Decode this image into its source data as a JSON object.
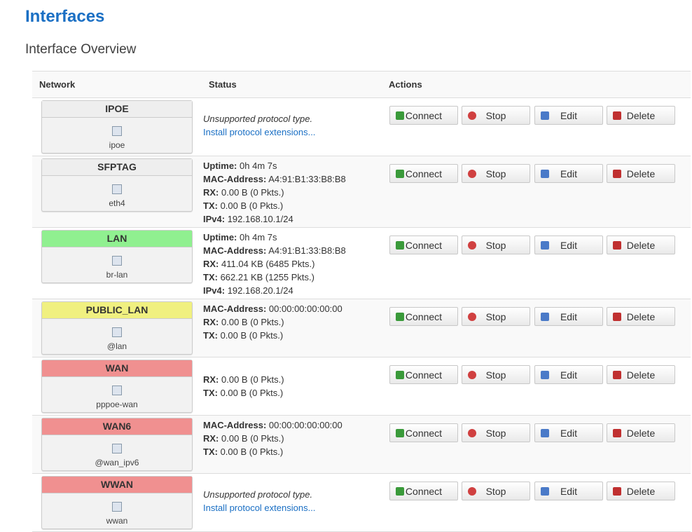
{
  "header": {
    "title": "Interfaces",
    "subtitle": "Interface Overview"
  },
  "table": {
    "columns": [
      "Network",
      "Status",
      "Actions"
    ],
    "actions": [
      "Connect",
      "Stop",
      "Edit",
      "Delete"
    ],
    "rows": [
      {
        "name": "IPOE",
        "device": "ipoe",
        "color": "#eeeeee",
        "message": "Unsupported protocol type.",
        "link": "Install protocol extensions..."
      },
      {
        "name": "SFPTAG",
        "device": "eth4",
        "color": "#eeeeee",
        "status": [
          {
            "label": "Uptime:",
            "value": "0h 4m 7s"
          },
          {
            "label": "MAC-Address:",
            "value": "A4:91:B1:33:B8:B8"
          },
          {
            "label": "RX:",
            "value": "0.00 B (0 Pkts.)"
          },
          {
            "label": "TX:",
            "value": "0.00 B (0 Pkts.)"
          },
          {
            "label": "IPv4:",
            "value": "192.168.10.1/24"
          }
        ]
      },
      {
        "name": "LAN",
        "device": "br-lan",
        "color": "#90f090",
        "status": [
          {
            "label": "Uptime:",
            "value": "0h 4m 7s"
          },
          {
            "label": "MAC-Address:",
            "value": "A4:91:B1:33:B8:B8"
          },
          {
            "label": "RX:",
            "value": "411.04 KB (6485 Pkts.)"
          },
          {
            "label": "TX:",
            "value": "662.21 KB (1255 Pkts.)"
          },
          {
            "label": "IPv4:",
            "value": "192.168.20.1/24"
          }
        ]
      },
      {
        "name": "PUBLIC_LAN",
        "device": "@lan",
        "color": "#f0f080",
        "status": [
          {
            "label": "MAC-Address:",
            "value": "00:00:00:00:00:00"
          },
          {
            "label": "RX:",
            "value": "0.00 B (0 Pkts.)"
          },
          {
            "label": "TX:",
            "value": "0.00 B (0 Pkts.)"
          }
        ]
      },
      {
        "name": "WAN",
        "device": "pppoe-wan",
        "color": "#f09090",
        "status": [
          {
            "label": "RX:",
            "value": "0.00 B (0 Pkts.)"
          },
          {
            "label": "TX:",
            "value": "0.00 B (0 Pkts.)"
          }
        ]
      },
      {
        "name": "WAN6",
        "device": "@wan_ipv6",
        "color": "#f09090",
        "status": [
          {
            "label": "MAC-Address:",
            "value": "00:00:00:00:00:00"
          },
          {
            "label": "RX:",
            "value": "0.00 B (0 Pkts.)"
          },
          {
            "label": "TX:",
            "value": "0.00 B (0 Pkts.)"
          }
        ]
      },
      {
        "name": "WWAN",
        "device": "wwan",
        "color": "#f09090",
        "message": "Unsupported protocol type.",
        "link": "Install protocol extensions..."
      }
    ]
  }
}
